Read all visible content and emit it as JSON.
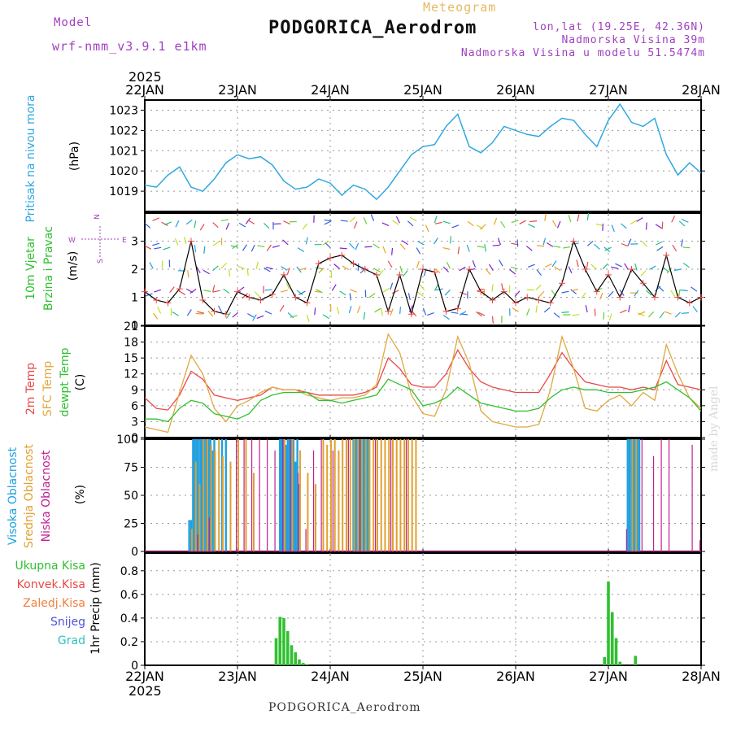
{
  "header": {
    "model_label": "Model",
    "model_version": "wrf-nmm_v3.9.1 e1km",
    "meteogram_label": "Meteogram",
    "station": "PODGORICA_Aerodrom",
    "lonlat": "lon,lat (19.25E, 42.36N)",
    "elevation": "Nadmorska Visina 39m",
    "model_elevation": "Nadmorska Visina u modelu 51.5474m"
  },
  "footer": {
    "station": "PODGORICA_Aerodrom",
    "credit": "made by Angel"
  },
  "time_axis": {
    "year": "2025",
    "days": [
      "22JAN",
      "23JAN",
      "24JAN",
      "25JAN",
      "26JAN",
      "27JAN",
      "28JAN"
    ]
  },
  "colors": {
    "pressure": "#30a8e0",
    "temp": "#e84848",
    "sfc": "#e0a840",
    "dew": "#30c030",
    "cloud_high": "#20a0e0",
    "cloud_mid": "#e0a030",
    "cloud_low": "#c02090",
    "precip": "#30c030",
    "wind_speed": "#000000",
    "gust_marker": "#e84848"
  },
  "chart_data": [
    {
      "type": "line",
      "id": "pressure",
      "ylabel": [
        "Pritisak na nivou mora",
        "(hPa)"
      ],
      "ylim": [
        1018,
        1023.5
      ],
      "yticks": [
        1019,
        1020,
        1021,
        1022,
        1023
      ],
      "grid": true,
      "series": [
        {
          "x": [
            0,
            3,
            6,
            9,
            12,
            15,
            18,
            21,
            24,
            27,
            30,
            33,
            36,
            39,
            42,
            45,
            48,
            51,
            54,
            57,
            60,
            63,
            66,
            69,
            72,
            75,
            78,
            81,
            84,
            87,
            90,
            93,
            96,
            99,
            102,
            105,
            108,
            111,
            114,
            117,
            120,
            123,
            126,
            129,
            132,
            135,
            138,
            141,
            144
          ],
          "values": [
            1019.3,
            1019.2,
            1019.8,
            1020.2,
            1019.2,
            1019.0,
            1019.6,
            1020.4,
            1020.8,
            1020.6,
            1020.7,
            1020.3,
            1019.5,
            1019.1,
            1019.2,
            1019.6,
            1019.4,
            1018.8,
            1019.3,
            1019.1,
            1018.6,
            1019.2,
            1020.0,
            1020.8,
            1021.2,
            1021.3,
            1022.2,
            1022.8,
            1021.2,
            1020.9,
            1021.4,
            1022.2,
            1022.0,
            1021.8,
            1021.7,
            1022.2,
            1022.6,
            1022.5,
            1021.8,
            1021.2,
            1022.5,
            1023.3,
            1022.4,
            1022.2,
            1022.6,
            1020.8,
            1019.8,
            1020.4,
            1019.9
          ]
        }
      ]
    },
    {
      "type": "line",
      "id": "wind",
      "ylabel": [
        "10m Vjetar",
        "Brzina i Pravac",
        "(m/s)"
      ],
      "compass": {
        "north": "N",
        "west": "W",
        "east": "E",
        "south": "S"
      },
      "ylim": [
        0,
        4
      ],
      "yticks": [
        0,
        1,
        2,
        3
      ],
      "grid": true,
      "series": [
        {
          "name": "speed",
          "x": [
            0,
            3,
            6,
            9,
            12,
            15,
            18,
            21,
            24,
            27,
            30,
            33,
            36,
            39,
            42,
            45,
            48,
            51,
            54,
            57,
            60,
            63,
            66,
            69,
            72,
            75,
            78,
            81,
            84,
            87,
            90,
            93,
            96,
            99,
            102,
            105,
            108,
            111,
            114,
            117,
            120,
            123,
            126,
            129,
            132,
            135,
            138,
            141,
            144
          ],
          "values": [
            1.2,
            0.9,
            0.8,
            1.3,
            3.0,
            0.9,
            0.5,
            0.4,
            1.2,
            1.0,
            0.9,
            1.1,
            1.8,
            1.0,
            0.8,
            2.2,
            2.4,
            2.5,
            2.2,
            2.0,
            1.8,
            0.5,
            1.8,
            0.4,
            2.0,
            1.9,
            0.5,
            0.6,
            2.0,
            1.2,
            0.9,
            1.2,
            0.8,
            1.0,
            0.9,
            0.8,
            1.5,
            3.0,
            2.0,
            1.2,
            1.8,
            1.0,
            2.0,
            1.5,
            1.0,
            2.5,
            1.0,
            0.8,
            1.0
          ]
        }
      ]
    },
    {
      "type": "line",
      "id": "temperature",
      "ylabel": [
        "2m Temp",
        "SFC Temp",
        "dewpt Temp",
        "(C)"
      ],
      "ylim": [
        0,
        21
      ],
      "yticks": [
        0,
        3,
        6,
        9,
        12,
        15,
        18,
        21
      ],
      "grid": true,
      "series": [
        {
          "name": "2m Temp",
          "x": [
            0,
            3,
            6,
            9,
            12,
            15,
            18,
            21,
            24,
            27,
            30,
            33,
            36,
            39,
            42,
            45,
            48,
            51,
            54,
            57,
            60,
            63,
            66,
            69,
            72,
            75,
            78,
            81,
            84,
            87,
            90,
            93,
            96,
            99,
            102,
            105,
            108,
            111,
            114,
            117,
            120,
            123,
            126,
            129,
            132,
            135,
            138,
            141,
            144
          ],
          "values": [
            7.5,
            5.5,
            5.2,
            8.0,
            12.5,
            11.0,
            8.0,
            7.5,
            7.0,
            7.5,
            8.0,
            9.5,
            9.0,
            9.0,
            8.5,
            8.0,
            8.0,
            8.0,
            8.0,
            8.5,
            9.5,
            15.0,
            13.0,
            10.0,
            9.5,
            9.5,
            12.0,
            16.5,
            13.0,
            10.5,
            9.5,
            9.0,
            8.5,
            8.5,
            8.5,
            12.0,
            16.0,
            13.0,
            10.5,
            10.0,
            9.5,
            9.5,
            9.0,
            9.5,
            9.0,
            14.5,
            10.0,
            9.5,
            9.0
          ]
        },
        {
          "name": "SFC Temp",
          "x": [
            0,
            3,
            6,
            9,
            12,
            15,
            18,
            21,
            24,
            27,
            30,
            33,
            36,
            39,
            42,
            45,
            48,
            51,
            54,
            57,
            60,
            63,
            66,
            69,
            72,
            75,
            78,
            81,
            84,
            87,
            90,
            93,
            96,
            99,
            102,
            105,
            108,
            111,
            114,
            117,
            120,
            123,
            126,
            129,
            132,
            135,
            138,
            141,
            144
          ],
          "values": [
            2.0,
            1.5,
            1.0,
            8.5,
            15.5,
            12.0,
            5.5,
            3.0,
            6.0,
            7.0,
            8.5,
            9.5,
            9.0,
            9.0,
            8.0,
            7.5,
            7.0,
            7.5,
            7.5,
            8.0,
            10.0,
            19.5,
            16.0,
            8.0,
            4.5,
            4.0,
            9.0,
            19.0,
            14.0,
            5.0,
            3.0,
            2.5,
            2.0,
            2.0,
            2.5,
            9.0,
            19.0,
            13.0,
            5.5,
            5.0,
            7.0,
            8.0,
            6.0,
            8.5,
            7.0,
            17.5,
            12.0,
            7.5,
            5.5
          ]
        },
        {
          "name": "dewpt Temp",
          "x": [
            0,
            3,
            6,
            9,
            12,
            15,
            18,
            21,
            24,
            27,
            30,
            33,
            36,
            39,
            42,
            45,
            48,
            51,
            54,
            57,
            60,
            63,
            66,
            69,
            72,
            75,
            78,
            81,
            84,
            87,
            90,
            93,
            96,
            99,
            102,
            105,
            108,
            111,
            114,
            117,
            120,
            123,
            126,
            129,
            132,
            135,
            138,
            141,
            144
          ],
          "values": [
            3.5,
            3.5,
            3.0,
            5.5,
            7.0,
            6.5,
            4.5,
            4.0,
            3.5,
            4.5,
            7.0,
            8.0,
            8.5,
            8.5,
            8.5,
            7.0,
            7.0,
            6.5,
            7.0,
            7.5,
            8.0,
            11.0,
            10.0,
            9.0,
            6.0,
            6.5,
            7.5,
            9.5,
            8.0,
            6.5,
            6.0,
            5.5,
            5.0,
            5.0,
            5.5,
            7.5,
            9.0,
            9.5,
            9.0,
            9.0,
            8.5,
            8.5,
            8.5,
            9.0,
            9.5,
            10.5,
            9.0,
            7.5,
            5.0
          ]
        }
      ]
    },
    {
      "type": "bar",
      "id": "clouds",
      "ylabel": [
        "Visoka Oblacnost",
        "Srednja Oblacnost",
        "Niska Oblacnost",
        "(%)"
      ],
      "ylim": [
        0,
        100
      ],
      "yticks": [
        0,
        25,
        50,
        75,
        100
      ],
      "grid": true,
      "series": [
        {
          "name": "Visoka Oblacnost",
          "x": [
            11.5,
            12,
            12.5,
            13,
            13.5,
            14,
            14.5,
            15,
            15.5,
            16,
            16.5,
            17,
            17.5,
            18,
            20,
            21,
            35,
            35.5,
            36,
            36.5,
            37,
            37.5,
            38,
            38.5,
            39,
            39.5,
            40,
            54,
            54.5,
            55,
            55.5,
            56,
            56.5,
            57,
            57.5,
            58,
            125,
            125.5,
            126,
            126.5,
            127,
            127.5,
            128
          ],
          "values": [
            28,
            28,
            100,
            100,
            100,
            100,
            100,
            100,
            100,
            100,
            100,
            100,
            90,
            100,
            100,
            100,
            100,
            100,
            100,
            95,
            100,
            100,
            100,
            100,
            80,
            100,
            60,
            100,
            100,
            100,
            100,
            100,
            100,
            100,
            100,
            100,
            100,
            100,
            100,
            100,
            100,
            100,
            100
          ]
        },
        {
          "name": "Srednja Oblacnost",
          "x": [
            12.2,
            13.2,
            14.2,
            15.2,
            16.2,
            17.2,
            18.2,
            19.2,
            20.2,
            22.2,
            24.2,
            26.2,
            28.2,
            36.2,
            38.2,
            40.2,
            42.2,
            44.2,
            46.2,
            47.2,
            48.2,
            49.2,
            50.2,
            51.2,
            52.2,
            53.2,
            54.2,
            55.2,
            56.2,
            57.2,
            58.2,
            59.2,
            60.2,
            61.2,
            62.2,
            63.2,
            64.2,
            65.2,
            66.2,
            67.2,
            68.2,
            69.2,
            70.2,
            126.2,
            127.2
          ],
          "values": [
            20,
            80,
            60,
            100,
            100,
            95,
            90,
            100,
            85,
            80,
            100,
            100,
            70,
            100,
            100,
            90,
            70,
            60,
            100,
            95,
            100,
            100,
            90,
            100,
            100,
            100,
            100,
            100,
            100,
            100,
            100,
            100,
            100,
            100,
            100,
            100,
            100,
            100,
            100,
            100,
            100,
            100,
            100,
            100,
            100
          ]
        },
        {
          "name": "Niska Oblacnost",
          "x": [
            13.7,
            16.7,
            19.7,
            23.7,
            25.7,
            27.7,
            29.7,
            31.7,
            33.7,
            35.7,
            37.7,
            39.7,
            41.7,
            43.7,
            45.7,
            48.7,
            52.7,
            55.7,
            59.7,
            63.7,
            67.7,
            124.7,
            128.7,
            131.7,
            133.7,
            135.7,
            141.7,
            143.7
          ],
          "values": [
            15,
            30,
            5,
            100,
            100,
            100,
            100,
            100,
            90,
            100,
            100,
            70,
            20,
            90,
            100,
            90,
            100,
            100,
            100,
            100,
            100,
            20,
            100,
            85,
            100,
            100,
            95,
            10
          ]
        }
      ]
    },
    {
      "type": "bar",
      "id": "precip",
      "ylabel": [
        "1hr Precip (mm)"
      ],
      "legend": [
        "Ukupna Kisa",
        "Konvek.Kisa",
        "Zaledj.Kisa",
        "Snijeg",
        "Grad"
      ],
      "legend_colors": [
        "#30c030",
        "#e84848",
        "#f08040",
        "#5050e0",
        "#30c0c0"
      ],
      "ylim": [
        0,
        0.95
      ],
      "yticks": [
        0,
        0.2,
        0.4,
        0.6,
        0.8
      ],
      "grid": true,
      "series": [
        {
          "name": "Ukupna Kisa",
          "x": [
            34,
            35,
            36,
            37,
            38,
            39,
            40,
            41,
            42,
            119,
            120,
            121,
            122,
            123,
            127
          ],
          "values": [
            0.23,
            0.41,
            0.4,
            0.29,
            0.17,
            0.11,
            0.05,
            0.02,
            0.01,
            0.07,
            0.71,
            0.45,
            0.23,
            0.03,
            0.08
          ]
        }
      ]
    }
  ]
}
